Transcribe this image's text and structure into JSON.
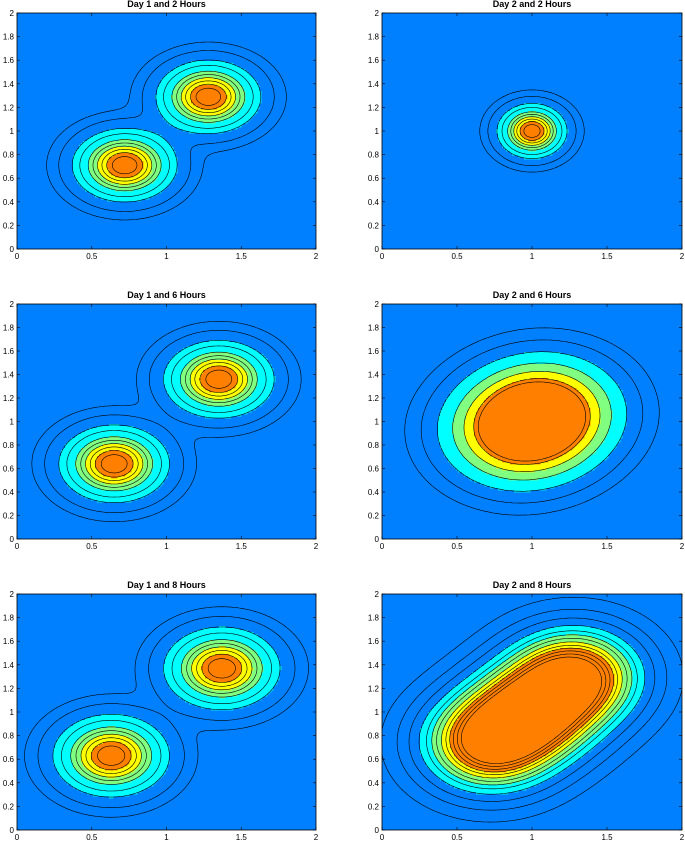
{
  "colors": {
    "background": "#0080FF",
    "levels": [
      "#0080FF",
      "#00FFFF",
      "#80FF80",
      "#FFFF00",
      "#FF8000"
    ],
    "contour_line": "#000000"
  },
  "chart_data": [
    {
      "type": "contour",
      "title": "Day 1 and 2 Hours",
      "xlim": [
        0,
        2
      ],
      "ylim": [
        0,
        2
      ],
      "xticks": [
        "0",
        "0.5",
        "1",
        "1.5",
        "2"
      ],
      "yticks": [
        "0",
        "0.2",
        "0.4",
        "0.6",
        "0.8",
        "1",
        "1.2",
        "1.4",
        "1.6",
        "1.8",
        "2"
      ],
      "peaks": [
        {
          "x": 0.72,
          "y": 0.71,
          "sx": 0.18,
          "sy": 0.16
        },
        {
          "x": 1.28,
          "y": 1.29,
          "sx": 0.18,
          "sy": 0.16
        }
      ],
      "fill_levels": [
        0.15,
        0.4,
        0.6,
        0.8
      ],
      "line_levels": [
        0.015,
        0.05,
        0.15,
        0.25,
        0.4,
        0.5,
        0.6,
        0.7,
        0.8,
        0.9
      ]
    },
    {
      "type": "contour",
      "title": "Day 2 and 2 Hours",
      "xlim": [
        0,
        2
      ],
      "ylim": [
        0,
        2
      ],
      "xticks": [
        "0",
        "0.5",
        "1",
        "1.5",
        "2"
      ],
      "yticks": [
        "0",
        "0.2",
        "0.4",
        "0.6",
        "0.8",
        "1",
        "1.2",
        "1.4",
        "1.6",
        "1.8",
        "2"
      ],
      "peaks": [
        {
          "x": 1.0,
          "y": 1.0,
          "sx": 0.12,
          "sy": 0.12
        }
      ],
      "fill_levels": [
        0.15,
        0.4,
        0.6,
        0.8
      ],
      "line_levels": [
        0.015,
        0.05,
        0.15,
        0.25,
        0.4,
        0.5,
        0.6,
        0.7,
        0.8,
        0.9
      ]
    },
    {
      "type": "contour",
      "title": "Day 1 and 6 Hours",
      "xlim": [
        0,
        2
      ],
      "ylim": [
        0,
        2
      ],
      "xticks": [
        "0",
        "0.5",
        "1",
        "1.5",
        "2"
      ],
      "yticks": [
        "0",
        "0.2",
        "0.4",
        "0.6",
        "0.8",
        "1",
        "1.2",
        "1.4",
        "1.6",
        "1.8",
        "2"
      ],
      "peaks": [
        {
          "x": 0.65,
          "y": 0.64,
          "sx": 0.19,
          "sy": 0.17
        },
        {
          "x": 1.35,
          "y": 1.36,
          "sx": 0.19,
          "sy": 0.17
        }
      ],
      "fill_levels": [
        0.15,
        0.4,
        0.6,
        0.8
      ],
      "line_levels": [
        0.015,
        0.05,
        0.15,
        0.25,
        0.4,
        0.5,
        0.6,
        0.7,
        0.8,
        0.9
      ]
    },
    {
      "type": "contour",
      "title": "Day 2 and 6 Hours",
      "xlim": [
        0,
        2
      ],
      "ylim": [
        0,
        2
      ],
      "xticks": [
        "0",
        "0.5",
        "1",
        "1.5",
        "2"
      ],
      "yticks": [
        "0",
        "0.2",
        "0.4",
        "0.6",
        "0.8",
        "1",
        "1.2",
        "1.4",
        "1.6",
        "1.8",
        "2"
      ],
      "peaks": [
        {
          "x": 0.9,
          "y": 0.9,
          "sx": 0.3,
          "sy": 0.28
        },
        {
          "x": 1.1,
          "y": 1.1,
          "sx": 0.3,
          "sy": 0.28
        }
      ],
      "fill_levels": [
        0.25,
        0.45,
        0.65,
        0.85
      ],
      "line_levels": [
        0.05,
        0.12,
        0.25,
        0.45,
        0.65,
        0.85,
        0.95
      ]
    },
    {
      "type": "contour",
      "title": "Day 1 and 8 Hours",
      "xlim": [
        0,
        2
      ],
      "ylim": [
        0,
        2
      ],
      "xticks": [
        "0",
        "0.5",
        "1",
        "1.5",
        "2"
      ],
      "yticks": [
        "0",
        "0.2",
        "0.4",
        "0.6",
        "0.8",
        "1",
        "1.2",
        "1.4",
        "1.6",
        "1.8",
        "2"
      ],
      "peaks": [
        {
          "x": 0.63,
          "y": 0.63,
          "sx": 0.2,
          "sy": 0.18
        },
        {
          "x": 1.37,
          "y": 1.37,
          "sx": 0.2,
          "sy": 0.18
        }
      ],
      "fill_levels": [
        0.15,
        0.4,
        0.6,
        0.8
      ],
      "line_levels": [
        0.015,
        0.05,
        0.15,
        0.25,
        0.4,
        0.5,
        0.6,
        0.7,
        0.8,
        0.9
      ]
    },
    {
      "type": "contour",
      "title": "Day 2 and 8 Hours",
      "xlim": [
        0,
        2
      ],
      "ylim": [
        0,
        2
      ],
      "xticks": [
        "0",
        "0.5",
        "1",
        "1.5",
        "2"
      ],
      "yticks": [
        "0",
        "0.2",
        "0.4",
        "0.6",
        "0.8",
        "1",
        "1.2",
        "1.4",
        "1.6",
        "1.8",
        "2"
      ],
      "peaks": [
        {
          "x": 0.72,
          "y": 0.74,
          "sx": 0.26,
          "sy": 0.24
        },
        {
          "x": 1.0,
          "y": 1.0,
          "sx": 0.26,
          "sy": 0.24
        },
        {
          "x": 1.28,
          "y": 1.3,
          "sx": 0.26,
          "sy": 0.24
        }
      ],
      "fill_levels": [
        0.2,
        0.35,
        0.5,
        0.65,
        0.8
      ],
      "line_levels": [
        0.02,
        0.06,
        0.12,
        0.2,
        0.28,
        0.35,
        0.42,
        0.5,
        0.58,
        0.65,
        0.72,
        0.8,
        0.88
      ]
    }
  ]
}
